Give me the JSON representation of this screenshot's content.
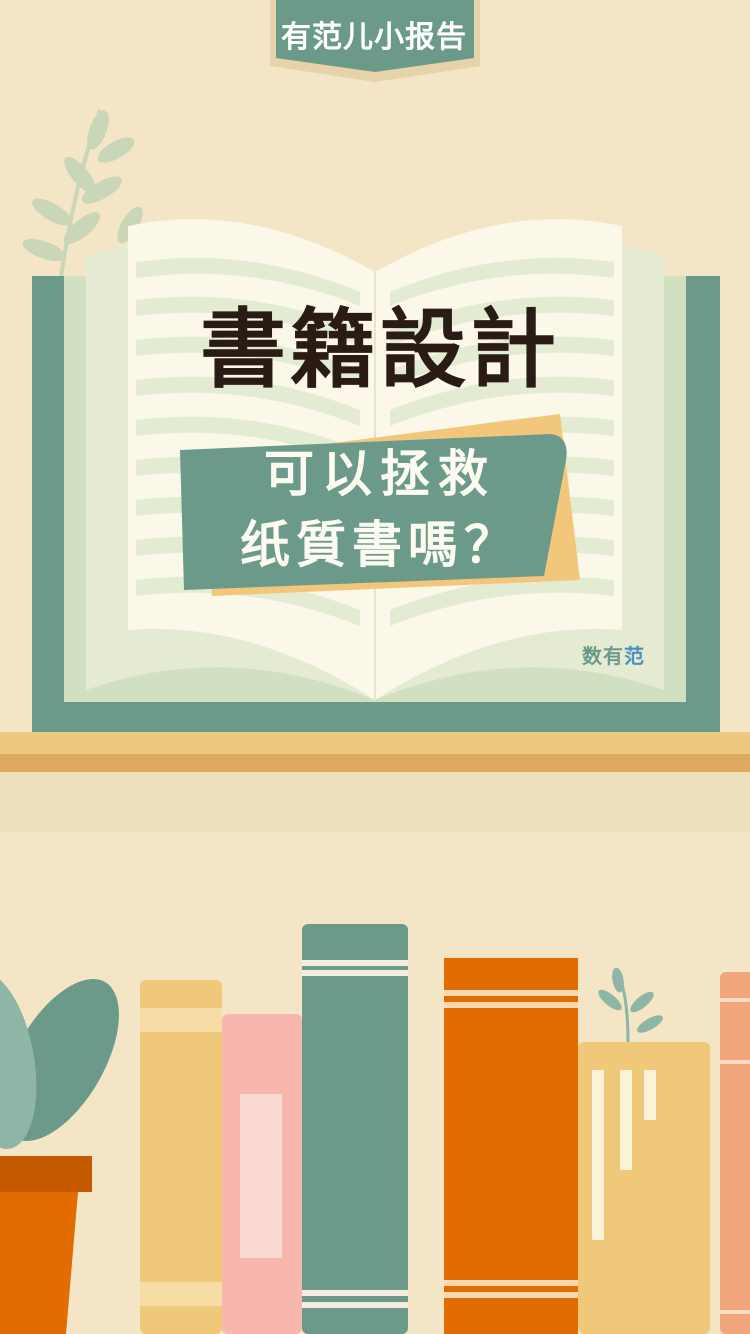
{
  "header": {
    "badge_label": "有范儿小报告"
  },
  "cover": {
    "title": "書籍設計",
    "subtitle_line1": "可以拯救",
    "subtitle_line2": "纸質書嗎？"
  },
  "watermark": {
    "part1": "数",
    "part2": "有",
    "part3": "范"
  },
  "colors": {
    "background": "#f3e5c5",
    "teal": "#6b9a8b",
    "page_cream": "#fbf8ea",
    "page_green": "#e5ebd2",
    "title_dark": "#2a1c15",
    "shelf": "#efc87f",
    "orange": "#e16d00",
    "pink": "#f8b7ae",
    "yellow": "#efc87a"
  },
  "icons": [
    "leafy-branch-icon",
    "potted-plant-icon",
    "small-sprout-icon"
  ]
}
